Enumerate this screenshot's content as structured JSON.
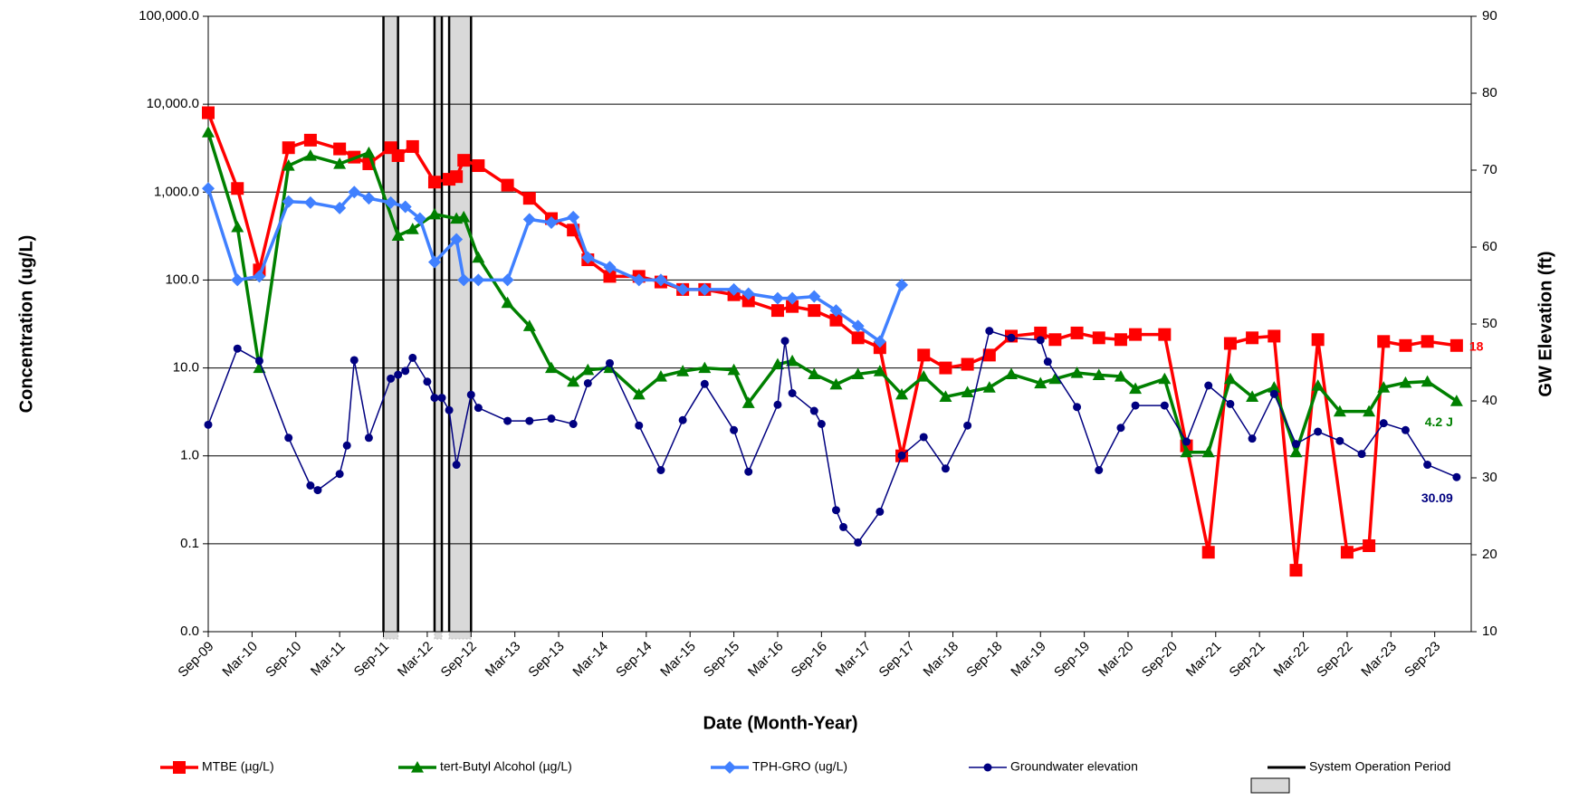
{
  "chart_data": {
    "type": "line",
    "x_label": "Date (Month-Year)",
    "y_label": "Concentration (ug/L)",
    "y2_label": "GW Elevation (ft)",
    "yscale": "log",
    "grid": true,
    "xlim": [
      "2009-09",
      "2024-02"
    ],
    "xticks": [
      {
        "value": "2009-09",
        "label": "Sep-09"
      },
      {
        "value": "2010-03",
        "label": "Mar-10"
      },
      {
        "value": "2010-09",
        "label": "Sep-10"
      },
      {
        "value": "2011-03",
        "label": "Mar-11"
      },
      {
        "value": "2011-09",
        "label": "Sep-11"
      },
      {
        "value": "2012-03",
        "label": "Mar-12"
      },
      {
        "value": "2012-09",
        "label": "Sep-12"
      },
      {
        "value": "2013-03",
        "label": "Mar-13"
      },
      {
        "value": "2013-09",
        "label": "Sep-13"
      },
      {
        "value": "2014-03",
        "label": "Mar-14"
      },
      {
        "value": "2014-09",
        "label": "Sep-14"
      },
      {
        "value": "2015-03",
        "label": "Mar-15"
      },
      {
        "value": "2015-09",
        "label": "Sep-15"
      },
      {
        "value": "2016-03",
        "label": "Mar-16"
      },
      {
        "value": "2016-09",
        "label": "Sep-16"
      },
      {
        "value": "2017-03",
        "label": "Mar-17"
      },
      {
        "value": "2017-09",
        "label": "Sep-17"
      },
      {
        "value": "2018-03",
        "label": "Mar-18"
      },
      {
        "value": "2018-09",
        "label": "Sep-18"
      },
      {
        "value": "2019-03",
        "label": "Mar-19"
      },
      {
        "value": "2019-09",
        "label": "Sep-19"
      },
      {
        "value": "2020-03",
        "label": "Mar-20"
      },
      {
        "value": "2020-09",
        "label": "Sep-20"
      },
      {
        "value": "2021-03",
        "label": "Mar-21"
      },
      {
        "value": "2021-09",
        "label": "Sep-21"
      },
      {
        "value": "2022-03",
        "label": "Mar-22"
      },
      {
        "value": "2022-09",
        "label": "Sep-22"
      },
      {
        "value": "2023-03",
        "label": "Mar-23"
      },
      {
        "value": "2023-09",
        "label": "Sep-23"
      }
    ],
    "ylim": [
      0.01,
      100000
    ],
    "yticks": [
      {
        "value": 0.01,
        "label": "0.0"
      },
      0.1,
      {
        "value": 1,
        "label": "1.0"
      },
      {
        "value": 10,
        "label": "10.0"
      },
      {
        "value": 100,
        "label": "100.0"
      },
      {
        "value": 1000,
        "label": "1,000.0"
      },
      {
        "value": 10000,
        "label": "10,000.0"
      },
      {
        "value": 100000,
        "label": "100,000.0"
      }
    ],
    "y2lim": [
      10,
      90
    ],
    "y2ticks": [
      10,
      20,
      30,
      40,
      50,
      60,
      70,
      80,
      90
    ],
    "operation_periods": {
      "name": "System Operation Period",
      "ranges": [
        [
          "2011-09",
          "2011-11"
        ],
        [
          "2012-04",
          "2012-05"
        ],
        [
          "2012-06",
          "2012-09"
        ]
      ]
    },
    "series": [
      {
        "name": "MTBE (µg/L)",
        "color": "#ff0000",
        "marker": "square",
        "end_label": "18",
        "x": [
          "2009-09",
          "2010-01",
          "2010-04",
          "2010-08",
          "2010-11",
          "2011-03",
          "2011-05",
          "2011-07",
          "2011-10",
          "2011-11",
          "2012-01",
          "2012-04",
          "2012-06",
          "2012-07",
          "2012-08",
          "2012-10",
          "2013-02",
          "2013-05",
          "2013-08",
          "2013-11",
          "2014-01",
          "2014-04",
          "2014-08",
          "2014-11",
          "2015-02",
          "2015-05",
          "2015-09",
          "2015-11",
          "2016-03",
          "2016-05",
          "2016-08",
          "2016-11",
          "2017-02",
          "2017-05",
          "2017-08",
          "2017-11",
          "2018-02",
          "2018-05",
          "2018-08",
          "2018-11",
          "2019-03",
          "2019-05",
          "2019-08",
          "2019-11",
          "2020-02",
          "2020-04",
          "2020-08",
          "2020-11",
          "2021-02",
          "2021-05",
          "2021-08",
          "2021-11",
          "2022-02",
          "2022-05",
          "2022-09",
          "2022-12",
          "2023-02",
          "2023-05",
          "2023-08",
          "2023-12"
        ],
        "values": [
          8000,
          1100,
          130,
          3200,
          3900,
          3100,
          2500,
          2100,
          3200,
          2600,
          3300,
          1300,
          1400,
          1500,
          2300,
          2000,
          1200,
          850,
          500,
          370,
          170,
          110,
          110,
          95,
          78,
          78,
          68,
          58,
          45,
          50,
          45,
          35,
          22,
          17,
          1.0,
          14,
          10,
          11,
          14,
          23,
          25,
          21,
          25,
          22,
          21,
          24,
          24,
          1.3,
          0.08,
          19,
          22,
          23,
          0.05,
          21,
          0.08,
          0.095,
          20,
          18,
          20,
          18
        ]
      },
      {
        "name": "tert-Butyl Alcohol (µg/L)",
        "color": "#008000",
        "marker": "triangle",
        "end_label": "4.2 J",
        "x": [
          "2009-09",
          "2010-01",
          "2010-04",
          "2010-08",
          "2010-11",
          "2011-03",
          "2011-07",
          "2011-11",
          "2012-01",
          "2012-04",
          "2012-07",
          "2012-08",
          "2012-10",
          "2013-02",
          "2013-05",
          "2013-08",
          "2013-11",
          "2014-01",
          "2014-04",
          "2014-08",
          "2014-11",
          "2015-02",
          "2015-05",
          "2015-09",
          "2015-11",
          "2016-03",
          "2016-05",
          "2016-08",
          "2016-11",
          "2017-02",
          "2017-05",
          "2017-08",
          "2017-11",
          "2018-02",
          "2018-05",
          "2018-08",
          "2018-11",
          "2019-03",
          "2019-05",
          "2019-08",
          "2019-11",
          "2020-02",
          "2020-04",
          "2020-08",
          "2020-11",
          "2021-02",
          "2021-05",
          "2021-08",
          "2021-11",
          "2022-02",
          "2022-05",
          "2022-08",
          "2022-12",
          "2023-02",
          "2023-05",
          "2023-08",
          "2023-12"
        ],
        "values": [
          4800,
          400,
          10,
          2000,
          2600,
          2100,
          2800,
          320,
          380,
          560,
          500,
          520,
          180,
          55,
          30,
          10,
          7,
          9.5,
          10,
          5,
          8,
          9.2,
          10,
          9.5,
          4,
          11,
          12,
          8.5,
          6.5,
          8.5,
          9.2,
          5,
          8,
          4.7,
          5.3,
          6,
          8.5,
          6.7,
          7.5,
          8.8,
          8.3,
          8,
          5.8,
          7.5,
          1.1,
          1.1,
          7.5,
          4.7,
          6,
          1.1,
          6.3,
          3.2,
          3.2,
          6,
          6.8,
          7,
          4.2
        ]
      },
      {
        "name": "TPH-GRO (ug/L)",
        "color": "#4080ff",
        "marker": "diamond",
        "x": [
          "2009-09",
          "2010-01",
          "2010-04",
          "2010-08",
          "2010-11",
          "2011-03",
          "2011-05",
          "2011-07",
          "2011-10",
          "2011-12",
          "2012-02",
          "2012-04",
          "2012-07",
          "2012-08",
          "2012-10",
          "2013-02",
          "2013-05",
          "2013-08",
          "2013-11",
          "2014-01",
          "2014-04",
          "2014-08",
          "2014-11",
          "2015-02",
          "2015-05",
          "2015-09",
          "2015-11",
          "2016-03",
          "2016-05",
          "2016-08",
          "2016-11",
          "2017-02",
          "2017-05",
          "2017-08"
        ],
        "values": [
          1100,
          100,
          110,
          780,
          760,
          660,
          1000,
          850,
          760,
          680,
          500,
          160,
          290,
          100,
          100,
          100,
          490,
          450,
          520,
          180,
          140,
          100,
          100,
          78,
          78,
          78,
          70,
          62,
          62,
          65,
          45,
          30,
          20,
          88
        ]
      },
      {
        "name": "Groundwater elevation",
        "color": "#000080",
        "marker": "circle",
        "axis": "y2",
        "end_label": "30.09",
        "x": [
          "2009-09",
          "2010-01",
          "2010-04",
          "2010-08",
          "2010-11",
          "2010-12",
          "2011-03",
          "2011-04",
          "2011-05",
          "2011-07",
          "2011-10",
          "2011-11",
          "2011-12",
          "2012-01",
          "2012-03",
          "2012-04",
          "2012-05",
          "2012-06",
          "2012-07",
          "2012-09",
          "2012-10",
          "2013-02",
          "2013-05",
          "2013-08",
          "2013-11",
          "2014-01",
          "2014-04",
          "2014-08",
          "2014-11",
          "2015-02",
          "2015-05",
          "2015-09",
          "2015-11",
          "2016-03",
          "2016-04",
          "2016-05",
          "2016-08",
          "2016-09",
          "2016-11",
          "2016-12",
          "2017-02",
          "2017-05",
          "2017-08",
          "2017-11",
          "2018-02",
          "2018-05",
          "2018-08",
          "2018-11",
          "2019-03",
          "2019-04",
          "2019-08",
          "2019-11",
          "2020-02",
          "2020-04",
          "2020-08",
          "2020-11",
          "2021-02",
          "2021-05",
          "2021-08",
          "2021-11",
          "2022-02",
          "2022-05",
          "2022-08",
          "2022-11",
          "2023-02",
          "2023-05",
          "2023-08",
          "2023-12"
        ],
        "values": [
          36.9,
          46.8,
          45.2,
          35.2,
          29.0,
          28.4,
          30.5,
          34.2,
          45.3,
          35.2,
          42.9,
          43.4,
          43.9,
          45.6,
          42.5,
          40.4,
          40.4,
          38.8,
          31.7,
          40.8,
          39.1,
          37.4,
          37.4,
          37.7,
          37.0,
          42.3,
          44.9,
          36.8,
          31.0,
          37.5,
          42.2,
          36.2,
          30.8,
          39.5,
          47.8,
          41.0,
          38.7,
          37.0,
          25.8,
          23.6,
          21.6,
          25.6,
          32.9,
          35.3,
          31.2,
          36.8,
          49.1,
          48.2,
          47.9,
          45.1,
          39.2,
          31.0,
          36.5,
          39.4,
          39.4,
          34.7,
          42.0,
          39.6,
          35.1,
          40.9,
          34.4,
          36.0,
          34.8,
          33.1,
          37.1,
          36.2,
          31.7,
          30.09
        ]
      }
    ]
  }
}
